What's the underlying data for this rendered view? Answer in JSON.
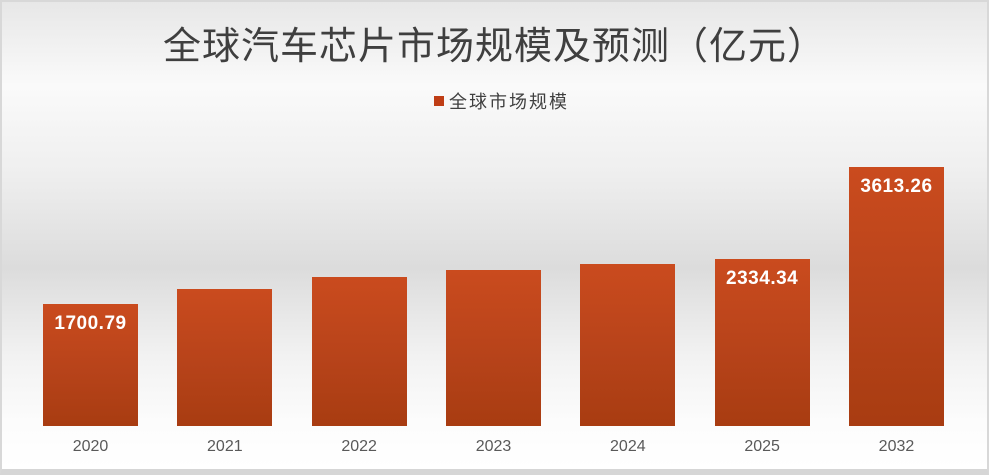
{
  "chart_data": {
    "type": "bar",
    "title": "全球汽车芯片市场规模及预测（亿元）",
    "legend": [
      "全球市场规模"
    ],
    "legend_position": "top",
    "categories": [
      "2020",
      "2021",
      "2022",
      "2023",
      "2024",
      "2025",
      "2032"
    ],
    "series": [
      {
        "name": "全球市场规模",
        "values": [
          1700.79,
          1910,
          2080,
          2175,
          2260,
          2334.34,
          3613.26
        ],
        "data_labels": [
          "1700.79",
          "",
          "",
          "",
          "",
          "2334.34",
          "3613.26"
        ]
      }
    ],
    "ylim": [
      0,
      3613.26
    ],
    "grid": false,
    "y_axis_visible": false,
    "x_axis_line_visible": false
  },
  "colors": {
    "bar_gradient_top": "#ca4b1e",
    "bar_gradient_mid": "#b7431a",
    "bar_gradient_bottom": "#a83c11",
    "legend_marker": "#bf3d15",
    "title_text": "#3f3f3f",
    "axis_label_text": "#595959",
    "data_label_text": "#ffffff",
    "background_top": "#e7e7e7",
    "background_mid": "#dcdcdc",
    "background_bottom": "#ffffff"
  }
}
